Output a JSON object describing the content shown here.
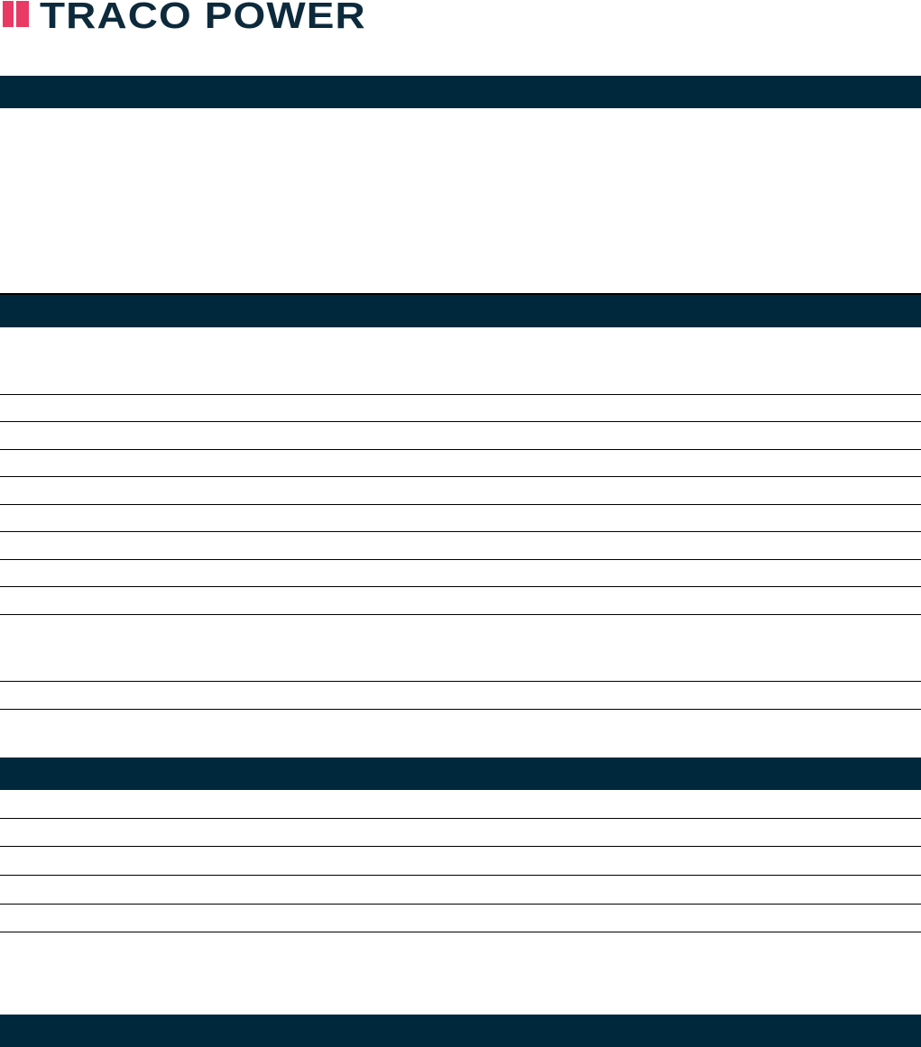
{
  "logo": {
    "text": "TRACO POWER",
    "accent_color": "#e83a64",
    "text_color": "#0d2a3c"
  },
  "colors": {
    "section_bar": "#00283c",
    "rule": "#000000"
  }
}
